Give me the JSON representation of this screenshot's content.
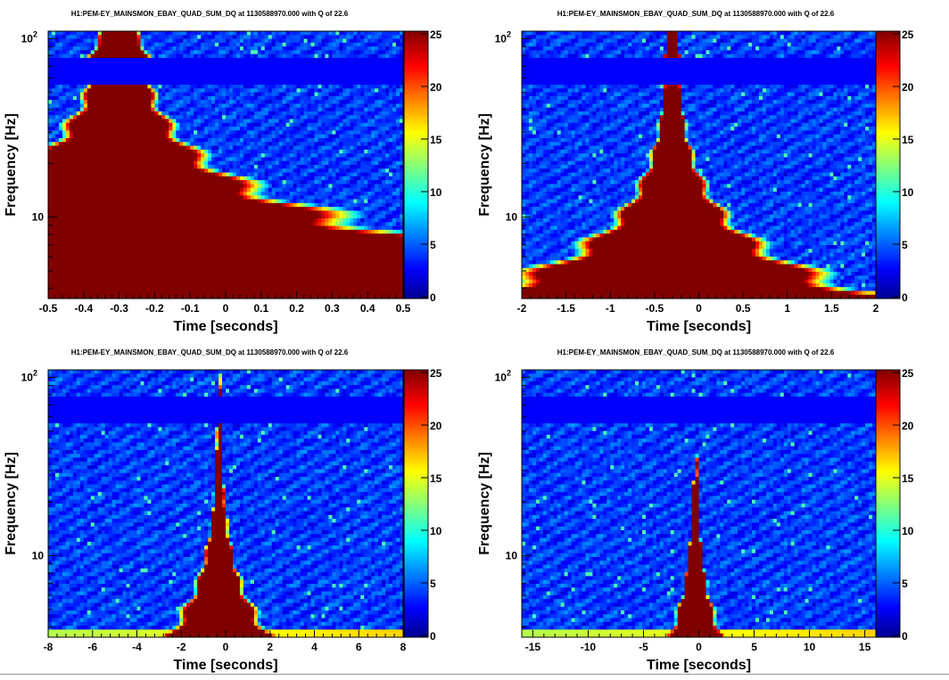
{
  "colorbar": {
    "ticks": [
      "0",
      "5",
      "10",
      "15",
      "20",
      "25"
    ],
    "max": 25
  },
  "chart_data": [
    {
      "type": "heatmap",
      "title": "H1:PEM-EY_MAINSMON_EBAY_QUAD_SUM_DQ at 1130588970.000 with Q of 22.6",
      "xlabel": "Time [seconds]",
      "ylabel": "Frequency [Hz]",
      "xlim": [
        -0.5,
        0.5
      ],
      "xticks": [
        "-0.5",
        "-0.4",
        "-0.3",
        "-0.2",
        "-0.1",
        "0",
        "0.1",
        "0.2",
        "0.3",
        "0.4",
        "0.5"
      ],
      "xtick_values": [
        -0.5,
        -0.4,
        -0.3,
        -0.2,
        -0.1,
        0,
        0.1,
        0.2,
        0.3,
        0.4,
        0.5
      ],
      "ylim": [
        3.5,
        110
      ],
      "yscale": "log",
      "yticks": [
        {
          "value": 10,
          "label": "10"
        },
        {
          "value": 100,
          "label": "10",
          "sup": "2"
        }
      ],
      "zlim": [
        0,
        25
      ],
      "colormap": "jet",
      "event_time": -0.3
    },
    {
      "type": "heatmap",
      "title": "H1:PEM-EY_MAINSMON_EBAY_QUAD_SUM_DQ at 1130588970.000 with Q of 22.6",
      "xlabel": "Time [seconds]",
      "ylabel": "Frequency [Hz]",
      "xlim": [
        -2,
        2
      ],
      "xticks": [
        "-2",
        "-1.5",
        "-1",
        "-0.5",
        "0",
        "0.5",
        "1",
        "1.5",
        "2"
      ],
      "xtick_values": [
        -2,
        -1.5,
        -1,
        -0.5,
        0,
        0.5,
        1,
        1.5,
        2
      ],
      "ylim": [
        3.5,
        110
      ],
      "yscale": "log",
      "yticks": [
        {
          "value": 10,
          "label": "10"
        },
        {
          "value": 100,
          "label": "10",
          "sup": "2"
        }
      ],
      "zlim": [
        0,
        25
      ],
      "colormap": "jet",
      "event_time": -0.3
    },
    {
      "type": "heatmap",
      "title": "H1:PEM-EY_MAINSMON_EBAY_QUAD_SUM_DQ at 1130588970.000 with Q of 22.6",
      "xlabel": "Time [seconds]",
      "ylabel": "Frequency [Hz]",
      "xlim": [
        -8,
        8
      ],
      "xticks": [
        "-8",
        "-6",
        "-4",
        "-2",
        "0",
        "2",
        "4",
        "6",
        "8"
      ],
      "xtick_values": [
        -8,
        -6,
        -4,
        -2,
        0,
        2,
        4,
        6,
        8
      ],
      "ylim": [
        3.5,
        110
      ],
      "yscale": "log",
      "yticks": [
        {
          "value": 10,
          "label": "10"
        },
        {
          "value": 100,
          "label": "10",
          "sup": "2"
        }
      ],
      "zlim": [
        0,
        25
      ],
      "colormap": "jet",
      "event_time": -0.3
    },
    {
      "type": "heatmap",
      "title": "H1:PEM-EY_MAINSMON_EBAY_QUAD_SUM_DQ at 1130588970.000 with Q of 22.6",
      "xlabel": "Time [seconds]",
      "ylabel": "Frequency [Hz]",
      "xlim": [
        -16,
        16
      ],
      "xticks": [
        "-15",
        "-10",
        "-5",
        "0",
        "5",
        "10",
        "15"
      ],
      "xtick_values": [
        -15,
        -10,
        -5,
        0,
        5,
        10,
        15
      ],
      "ylim": [
        3.5,
        110
      ],
      "yscale": "log",
      "yticks": [
        {
          "value": 10,
          "label": "10"
        },
        {
          "value": 100,
          "label": "10",
          "sup": "2"
        }
      ],
      "zlim": [
        0,
        25
      ],
      "colormap": "jet",
      "event_time": -0.3
    }
  ]
}
